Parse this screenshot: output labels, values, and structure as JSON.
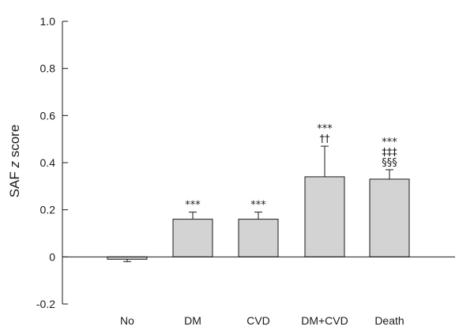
{
  "chart_data": {
    "type": "bar",
    "ylabel": "SAF z score",
    "ylabel_parts": [
      "SAF ",
      "z",
      " score"
    ],
    "ylim": [
      -0.2,
      1.0
    ],
    "yticks": [
      -0.2,
      0,
      0.2,
      0.4,
      0.6,
      0.8,
      1.0
    ],
    "ytick_labels": [
      "-0.2",
      "0",
      "0.2",
      "0.4",
      "0.6",
      "0.8",
      "1.0"
    ],
    "categories": [
      "No",
      "DM",
      "CVD",
      "DM+CVD",
      "Death"
    ],
    "values": [
      -0.01,
      0.16,
      0.16,
      0.34,
      0.33
    ],
    "errors": [
      0.01,
      0.03,
      0.03,
      0.13,
      0.04
    ],
    "annotations": [
      [],
      [
        "***"
      ],
      [
        "***"
      ],
      [
        "***",
        "††"
      ],
      [
        "***",
        "‡‡‡",
        "§§§"
      ]
    ],
    "bar_color": "#d3d3d3",
    "grid": false
  }
}
